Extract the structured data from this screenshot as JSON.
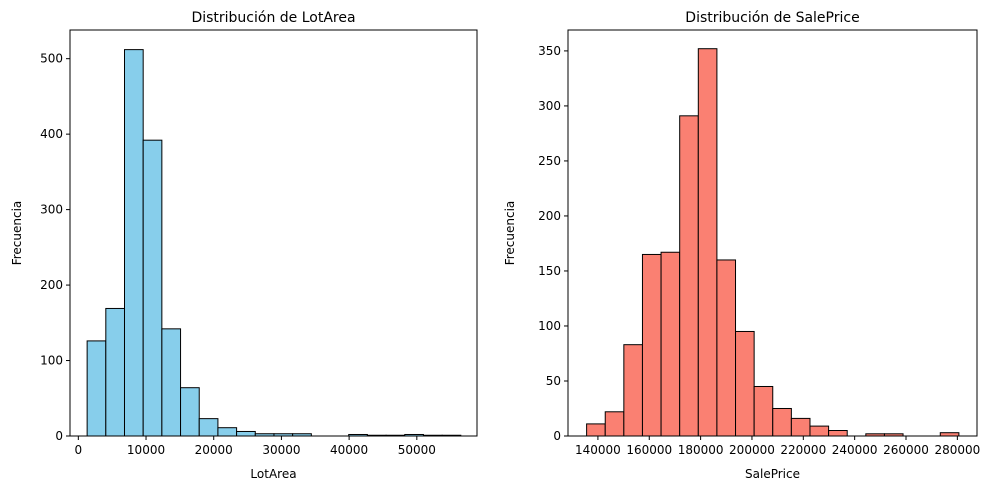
{
  "chart_data": [
    {
      "type": "bar",
      "title": "Distribución de LotArea",
      "xlabel": "LotArea",
      "ylabel": "Frecuencia",
      "xlim": [
        -1230,
        58890
      ],
      "ylim": [
        0,
        538
      ],
      "x_ticks": [
        0,
        10000,
        20000,
        30000,
        40000,
        50000
      ],
      "y_ticks": [
        0,
        100,
        200,
        300,
        400,
        500
      ],
      "bar_color": "#87ceeb",
      "edge_color": "#000000",
      "bin_edges": [
        1300,
        4060,
        6820,
        9580,
        12340,
        15100,
        17860,
        20620,
        23380,
        26140,
        28900,
        31660,
        34420,
        37180,
        39940,
        42700,
        45460,
        48220,
        50980,
        53740,
        56500
      ],
      "values": [
        126,
        169,
        512,
        392,
        142,
        64,
        23,
        11,
        6,
        3,
        3,
        3,
        0,
        0,
        2,
        1,
        1,
        2,
        1,
        1
      ]
    },
    {
      "type": "bar",
      "title": "Distribución de SalePrice",
      "xlabel": "SalePrice",
      "ylabel": "Frecuencia",
      "xlim": [
        128350,
        287650
      ],
      "ylim": [
        0,
        369
      ],
      "x_ticks": [
        140000,
        160000,
        180000,
        200000,
        220000,
        240000,
        260000,
        280000
      ],
      "y_ticks": [
        0,
        50,
        100,
        150,
        200,
        250,
        300,
        350
      ],
      "bar_color": "#fa8072",
      "edge_color": "#000000",
      "bin_edges": [
        135600,
        142850,
        150100,
        157350,
        164600,
        171850,
        179100,
        186350,
        193600,
        200850,
        208100,
        215350,
        222600,
        229850,
        237100,
        244350,
        251600,
        258850,
        266100,
        273350,
        280600
      ],
      "values": [
        11,
        22,
        83,
        165,
        167,
        291,
        352,
        160,
        95,
        45,
        25,
        16,
        9,
        5,
        0,
        2,
        2,
        0,
        0,
        3
      ]
    }
  ]
}
